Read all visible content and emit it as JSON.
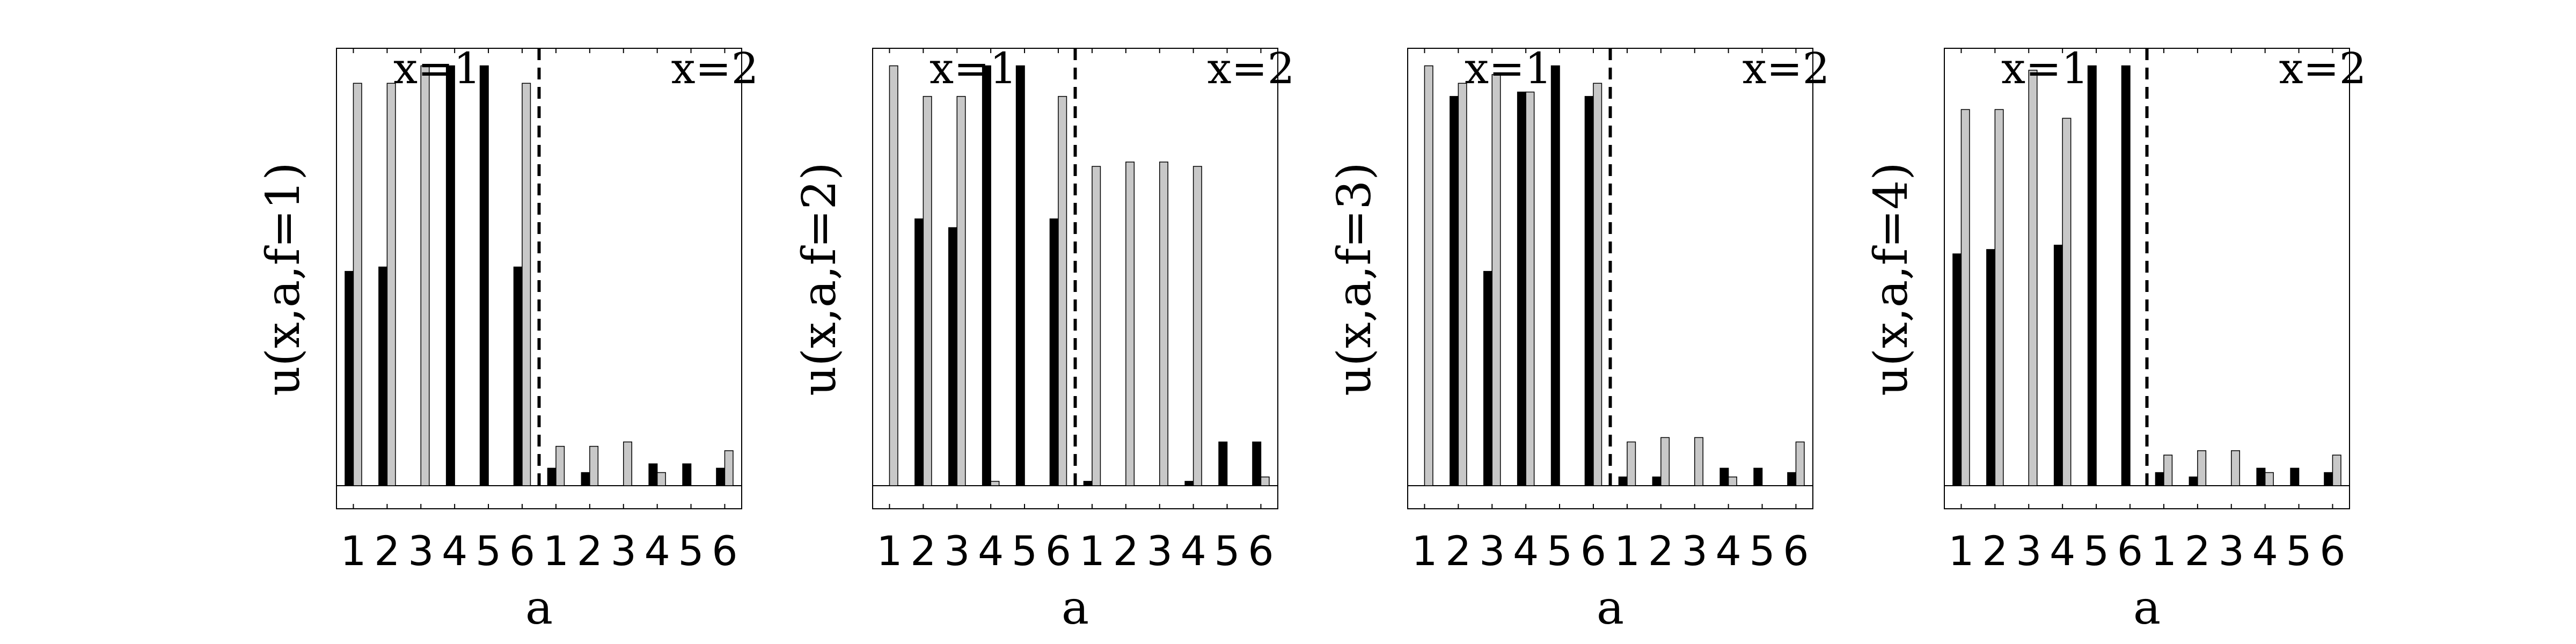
{
  "colors": {
    "black_series": "#000000",
    "gray_series": "#c8c8c8",
    "axis": "#000000",
    "divider": "#000000",
    "background": "#ffffff"
  },
  "chart_data": [
    {
      "type": "bar",
      "ylabel": "u(x,a,f=1)",
      "xlabel": "a",
      "annotations": [
        "x=1",
        "x=2"
      ],
      "ylim": [
        0,
        1
      ],
      "grid": false,
      "groups": [
        {
          "name": "x=1",
          "categories": [
            "1",
            "2",
            "3",
            "4",
            "5",
            "6"
          ],
          "series": [
            {
              "values": [
                0.49,
                0.5,
                0.0,
                0.96,
                0.96,
                0.5
              ]
            },
            {
              "values": [
                0.92,
                0.92,
                0.96,
                0.0,
                0.0,
                0.92
              ]
            }
          ]
        },
        {
          "name": "x=2",
          "categories": [
            "1",
            "2",
            "3",
            "4",
            "5",
            "6"
          ],
          "series": [
            {
              "values": [
                0.04,
                0.03,
                0.0,
                0.05,
                0.05,
                0.04
              ]
            },
            {
              "values": [
                0.09,
                0.09,
                0.1,
                0.03,
                0.0,
                0.08
              ]
            }
          ]
        }
      ]
    },
    {
      "type": "bar",
      "ylabel": "u(x,a,f=2)",
      "xlabel": "a",
      "annotations": [
        "x=1",
        "x=2"
      ],
      "ylim": [
        0,
        1
      ],
      "grid": false,
      "groups": [
        {
          "name": "x=1",
          "categories": [
            "1",
            "2",
            "3",
            "4",
            "5",
            "6"
          ],
          "series": [
            {
              "values": [
                0.0,
                0.61,
                0.59,
                0.96,
                0.96,
                0.61
              ]
            },
            {
              "values": [
                0.96,
                0.89,
                0.89,
                0.01,
                0.0,
                0.89
              ]
            }
          ]
        },
        {
          "name": "x=2",
          "categories": [
            "1",
            "2",
            "3",
            "4",
            "5",
            "6"
          ],
          "series": [
            {
              "values": [
                0.01,
                0.0,
                0.0,
                0.01,
                0.1,
                0.1
              ]
            },
            {
              "values": [
                0.73,
                0.74,
                0.74,
                0.73,
                0.0,
                0.02
              ]
            }
          ]
        }
      ]
    },
    {
      "type": "bar",
      "ylabel": "u(x,a,f=3)",
      "xlabel": "a",
      "annotations": [
        "x=1",
        "x=2"
      ],
      "ylim": [
        0,
        1
      ],
      "grid": false,
      "groups": [
        {
          "name": "x=1",
          "categories": [
            "1",
            "2",
            "3",
            "4",
            "5",
            "6"
          ],
          "series": [
            {
              "values": [
                0.0,
                0.89,
                0.49,
                0.9,
                0.96,
                0.89
              ]
            },
            {
              "values": [
                0.96,
                0.92,
                0.94,
                0.9,
                0.0,
                0.92
              ]
            }
          ]
        },
        {
          "name": "x=2",
          "categories": [
            "1",
            "2",
            "3",
            "4",
            "5",
            "6"
          ],
          "series": [
            {
              "values": [
                0.02,
                0.02,
                0.0,
                0.04,
                0.04,
                0.03
              ]
            },
            {
              "values": [
                0.1,
                0.11,
                0.11,
                0.02,
                0.0,
                0.1
              ]
            }
          ]
        }
      ]
    },
    {
      "type": "bar",
      "ylabel": "u(x,a,f=4)",
      "xlabel": "a",
      "annotations": [
        "x=1",
        "x=2"
      ],
      "ylim": [
        0,
        1
      ],
      "grid": false,
      "groups": [
        {
          "name": "x=1",
          "categories": [
            "1",
            "2",
            "3",
            "4",
            "5",
            "6"
          ],
          "series": [
            {
              "values": [
                0.53,
                0.54,
                0.0,
                0.55,
                0.96,
                0.96
              ]
            },
            {
              "values": [
                0.86,
                0.86,
                0.95,
                0.84,
                0.0,
                0.0
              ]
            }
          ]
        },
        {
          "name": "x=2",
          "categories": [
            "1",
            "2",
            "3",
            "4",
            "5",
            "6"
          ],
          "series": [
            {
              "values": [
                0.03,
                0.02,
                0.0,
                0.04,
                0.04,
                0.03
              ]
            },
            {
              "values": [
                0.07,
                0.08,
                0.08,
                0.03,
                0.0,
                0.07
              ]
            }
          ]
        }
      ]
    }
  ]
}
